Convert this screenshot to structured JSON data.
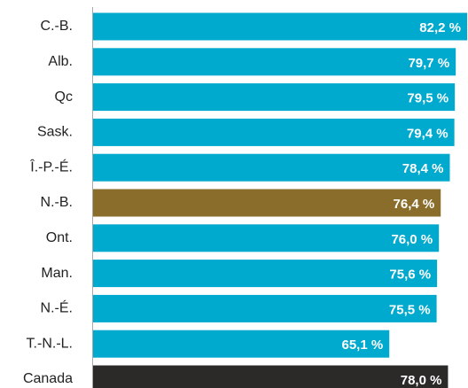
{
  "chart_data": {
    "type": "hbar",
    "categories": [
      "C.-B.",
      "Alb.",
      "Qc",
      "Sask.",
      "Î.-P.-É.",
      "N.-B.",
      "Ont.",
      "Man.",
      "N.-É.",
      "T.-N.-L.",
      "Canada"
    ],
    "values": [
      82.2,
      79.7,
      79.5,
      79.4,
      78.4,
      76.4,
      76.0,
      75.6,
      75.5,
      65.1,
      78.0
    ],
    "value_labels": [
      "82,2 %",
      "79,7 %",
      "79,5 %",
      "79,4 %",
      "78,4 %",
      "76,4 %",
      "76,0 %",
      "75,6 %",
      "75,5 %",
      "65,1 %",
      "78,0 %"
    ],
    "colors": [
      "#00a9ce",
      "#00a9ce",
      "#00a9ce",
      "#00a9ce",
      "#00a9ce",
      "#8a6d2b",
      "#00a9ce",
      "#00a9ce",
      "#00a9ce",
      "#00a9ce",
      "#2b2a29"
    ]
  }
}
